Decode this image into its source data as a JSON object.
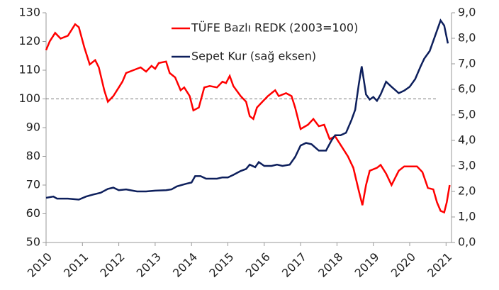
{
  "chart_data": {
    "type": "line",
    "xlim": [
      2010,
      2021.15
    ],
    "xticks": [
      2010,
      2011,
      2012,
      2013,
      2014,
      2015,
      2016,
      2017,
      2018,
      2019,
      2020,
      2021
    ],
    "ylim": [
      50,
      130
    ],
    "yticks": [
      50,
      60,
      70,
      80,
      90,
      100,
      110,
      120,
      130
    ],
    "y2lim": [
      0,
      9
    ],
    "y2ticks": [
      {
        "value": 0,
        "label": "0,0"
      },
      {
        "value": 1,
        "label": "1,0"
      },
      {
        "value": 2,
        "label": "2,0"
      },
      {
        "value": 3,
        "label": "3,0"
      },
      {
        "value": 4,
        "label": "4,0"
      },
      {
        "value": 5,
        "label": "5,0"
      },
      {
        "value": 6,
        "label": "6,0"
      },
      {
        "value": 7,
        "label": "7,0"
      },
      {
        "value": 8,
        "label": "8,0"
      },
      {
        "value": 9,
        "label": "9,0"
      }
    ],
    "hline": 100,
    "series": [
      {
        "name": "TÜFE Bazlı REDK (2003=100)",
        "color": "#ff0000",
        "x": [
          2010,
          2010.1,
          2010.25,
          2010.4,
          2010.6,
          2010.8,
          2010.9,
          2011.05,
          2011.2,
          2011.35,
          2011.45,
          2011.6,
          2011.7,
          2011.85,
          2012,
          2012.1,
          2012.2,
          2012.4,
          2012.6,
          2012.75,
          2012.9,
          2013,
          2013.1,
          2013.3,
          2013.4,
          2013.55,
          2013.7,
          2013.8,
          2013.95,
          2014.05,
          2014.2,
          2014.35,
          2014.5,
          2014.7,
          2014.85,
          2014.95,
          2015.05,
          2015.15,
          2015.35,
          2015.5,
          2015.6,
          2015.7,
          2015.8,
          2015.95,
          2016.1,
          2016.3,
          2016.4,
          2016.6,
          2016.75,
          2016.85,
          2017,
          2017.2,
          2017.35,
          2017.5,
          2017.65,
          2017.8,
          2017.95,
          2018.1,
          2018.3,
          2018.45,
          2018.6,
          2018.7,
          2018.8,
          2018.9,
          2019.1,
          2019.2,
          2019.35,
          2019.5,
          2019.7,
          2019.85,
          2020.05,
          2020.2,
          2020.35,
          2020.5,
          2020.65,
          2020.75,
          2020.85,
          2020.95,
          2021.02,
          2021.1
        ],
        "values": [
          117,
          120,
          123,
          121,
          122,
          126,
          125,
          118,
          112,
          113.5,
          111,
          103,
          99,
          101,
          104,
          106,
          109,
          110,
          111,
          109.5,
          111.5,
          110.5,
          112.5,
          113,
          109,
          107.5,
          103,
          104,
          101,
          96,
          97,
          104,
          104.5,
          104,
          106,
          105.5,
          108,
          104.5,
          101,
          99,
          94,
          93,
          97,
          99,
          101,
          103,
          101,
          102,
          101,
          97,
          89.5,
          91,
          93,
          90.5,
          91,
          86,
          87,
          84,
          80,
          76,
          68,
          63,
          70,
          75,
          76,
          77,
          74,
          70,
          75,
          76.5,
          76.5,
          76.5,
          74.5,
          69,
          68.5,
          64,
          61,
          60.5,
          64,
          70
        ]
      },
      {
        "name": "Sepet Kur (sağ eksen)",
        "color": "#0d1f5c",
        "axis": "y2",
        "x": [
          2010,
          2010.2,
          2010.3,
          2010.6,
          2010.9,
          2011.1,
          2011.3,
          2011.5,
          2011.7,
          2011.85,
          2012,
          2012.2,
          2012.5,
          2012.75,
          2013,
          2013.3,
          2013.45,
          2013.6,
          2013.85,
          2014,
          2014.1,
          2014.25,
          2014.4,
          2014.7,
          2014.85,
          2015,
          2015.15,
          2015.35,
          2015.5,
          2015.6,
          2015.75,
          2015.85,
          2016,
          2016.2,
          2016.35,
          2016.5,
          2016.7,
          2016.85,
          2017,
          2017.15,
          2017.3,
          2017.5,
          2017.7,
          2017.85,
          2017.95,
          2018.1,
          2018.25,
          2018.4,
          2018.5,
          2018.6,
          2018.68,
          2018.8,
          2018.9,
          2019,
          2019.1,
          2019.2,
          2019.35,
          2019.5,
          2019.7,
          2019.85,
          2020,
          2020.15,
          2020.3,
          2020.4,
          2020.55,
          2020.7,
          2020.85,
          2020.95,
          2021.05
        ],
        "values": [
          1.75,
          1.8,
          1.72,
          1.72,
          1.68,
          1.8,
          1.88,
          1.95,
          2.1,
          2.15,
          2.05,
          2.08,
          2,
          2,
          2.03,
          2.05,
          2.08,
          2.2,
          2.3,
          2.35,
          2.6,
          2.6,
          2.5,
          2.5,
          2.55,
          2.55,
          2.65,
          2.8,
          2.88,
          3.05,
          2.95,
          3.15,
          3,
          3,
          3.05,
          3,
          3.05,
          3.35,
          3.8,
          3.9,
          3.85,
          3.6,
          3.6,
          4,
          4.2,
          4.2,
          4.3,
          4.8,
          5.2,
          6.2,
          6.9,
          5.8,
          5.6,
          5.7,
          5.55,
          5.8,
          6.3,
          6.1,
          5.85,
          5.95,
          6.1,
          6.4,
          6.9,
          7.2,
          7.5,
          8.1,
          8.7,
          8.5,
          7.8
        ]
      }
    ]
  }
}
